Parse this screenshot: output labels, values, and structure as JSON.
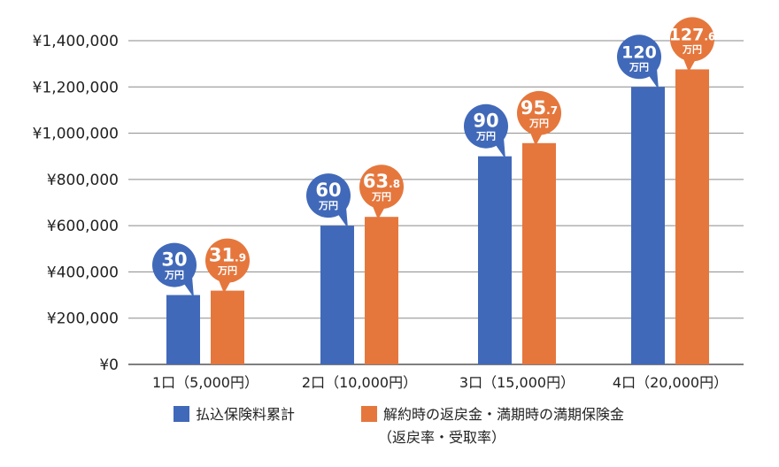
{
  "chart_data": {
    "type": "bar",
    "categories": [
      "1口（5,000円）",
      "2口（10,000円）",
      "3口（15,000円）",
      "4口（20,000円）"
    ],
    "y_ticks": [
      "¥0",
      "¥200,000",
      "¥400,000",
      "¥600,000",
      "¥800,000",
      "¥1,000,000",
      "¥1,200,000",
      "¥1,400,000"
    ],
    "ylim": [
      0,
      1400000
    ],
    "grid": true,
    "series": [
      {
        "name": "払込保険料累計",
        "color": "#4169b9",
        "values": [
          300000,
          600000,
          900000,
          1200000
        ],
        "labels": [
          {
            "main": "30",
            "decimal": "",
            "unit": "万円"
          },
          {
            "main": "60",
            "decimal": "",
            "unit": "万円"
          },
          {
            "main": "90",
            "decimal": "",
            "unit": "万円"
          },
          {
            "main": "120",
            "decimal": "",
            "unit": "万円"
          }
        ]
      },
      {
        "name": "解約時の返戻金・満期時の満期保険金",
        "name_line2": "（返戻率・受取率）",
        "color": "#e5773d",
        "values": [
          319000,
          638000,
          957000,
          1276000
        ],
        "labels": [
          {
            "main": "31",
            "decimal": ".9",
            "unit": "万円"
          },
          {
            "main": "63",
            "decimal": ".8",
            "unit": "万円"
          },
          {
            "main": "95",
            "decimal": ".7",
            "unit": "万円"
          },
          {
            "main": "127",
            "decimal": ".6",
            "unit": "万円"
          }
        ]
      }
    ],
    "legend_position": "bottom"
  }
}
